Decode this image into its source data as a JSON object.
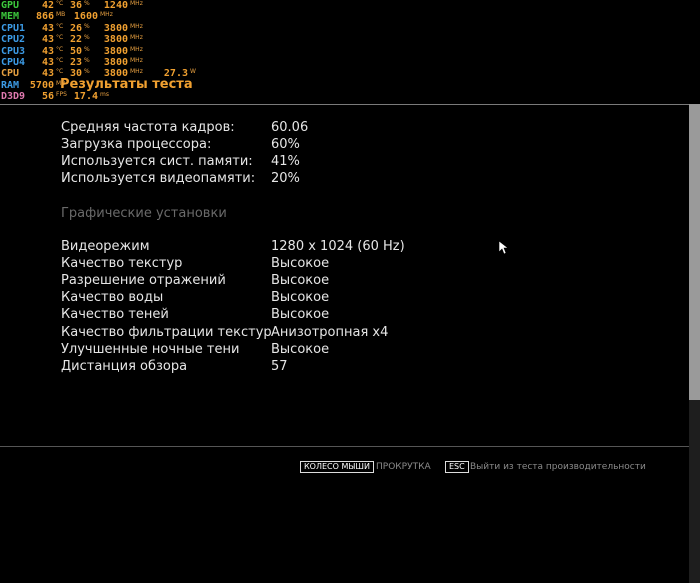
{
  "osd": [
    {
      "label": "GPU",
      "cells": [
        {
          "value": 42,
          "unit": "°C"
        },
        {
          "value": 36,
          "unit": "%"
        },
        {
          "value": 1240,
          "unit": "MHz"
        }
      ]
    },
    {
      "label": "MEM",
      "cells": [
        {
          "value": 866,
          "unit": "MB"
        },
        {
          "value": 1600,
          "unit": "MHz"
        }
      ]
    },
    {
      "label": "CPU1",
      "cells": [
        {
          "value": 43,
          "unit": "°C"
        },
        {
          "value": 26,
          "unit": "%"
        },
        {
          "value": 3800,
          "unit": "MHz"
        }
      ]
    },
    {
      "label": "CPU2",
      "cells": [
        {
          "value": 43,
          "unit": "°C"
        },
        {
          "value": 22,
          "unit": "%"
        },
        {
          "value": 3800,
          "unit": "MHz"
        }
      ]
    },
    {
      "label": "CPU3",
      "cells": [
        {
          "value": 43,
          "unit": "°C"
        },
        {
          "value": 50,
          "unit": "%"
        },
        {
          "value": 3800,
          "unit": "MHz"
        }
      ]
    },
    {
      "label": "CPU4",
      "cells": [
        {
          "value": 43,
          "unit": "°C"
        },
        {
          "value": 23,
          "unit": "%"
        },
        {
          "value": 3800,
          "unit": "MHz"
        }
      ]
    },
    {
      "label": "CPU",
      "cells": [
        {
          "value": 43,
          "unit": "°C"
        },
        {
          "value": 30,
          "unit": "%"
        },
        {
          "value": 3800,
          "unit": "MHz"
        },
        {
          "value": 27.3,
          "unit": "W"
        }
      ]
    },
    {
      "label": "RAM",
      "cells": [
        {
          "value": 5700,
          "unit": "MB"
        }
      ]
    },
    {
      "label": "D3D9",
      "cells": [
        {
          "value": 56,
          "unit": "FPS"
        },
        {
          "value": 17.4,
          "unit": "ms"
        }
      ]
    }
  ],
  "title": "Результаты теста",
  "stats": [
    {
      "label": "Средняя частота кадров:",
      "value": "60.06"
    },
    {
      "label": "Загрузка процессора:",
      "value": "60%"
    },
    {
      "label": "Используется сист. памяти:",
      "value": "41%"
    },
    {
      "label": "Используется видеопамяти:",
      "value": "20%"
    }
  ],
  "settings_heading": "Графические установки",
  "settings": [
    {
      "label": "Видеорежим",
      "value": "1280 x 1024 (60 Hz)"
    },
    {
      "label": "Качество текстур",
      "value": "Высокое"
    },
    {
      "label": "Разрешение отражений",
      "value": "Высокое"
    },
    {
      "label": "Качество воды",
      "value": "Высокое"
    },
    {
      "label": "Качество теней",
      "value": "Высокое"
    },
    {
      "label": "Качество фильтрации текстур",
      "value": "Анизотропная x4"
    },
    {
      "label": "Улучшенные ночные тени",
      "value": "Высокое"
    },
    {
      "label": "Дистанция обзора",
      "value": "57"
    }
  ],
  "footer": [
    {
      "key": "КОЛЕСО МЫШИ",
      "action": "ПРОКРУТКА"
    },
    {
      "key": "ESC",
      "action": "Выйти из теста производительности"
    }
  ]
}
